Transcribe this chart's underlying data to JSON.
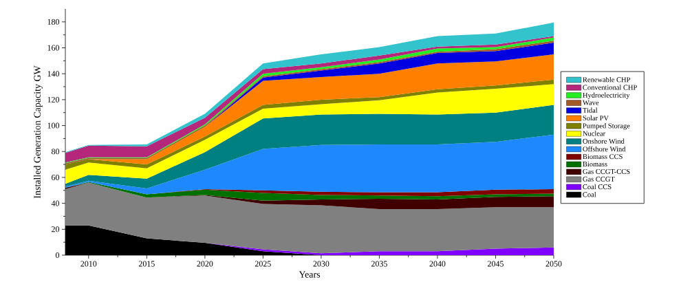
{
  "chart_data": {
    "type": "area",
    "stacked": true,
    "xlabel": "Years",
    "ylabel": "Installed Generation Capacity GW",
    "x": [
      2008,
      2010,
      2015,
      2020,
      2025,
      2030,
      2035,
      2040,
      2045,
      2050
    ],
    "xlim": [
      2008,
      2050
    ],
    "ylim": [
      0,
      190
    ],
    "xticks": [
      2010,
      2015,
      2020,
      2025,
      2030,
      2035,
      2040,
      2045,
      2050
    ],
    "yticks": [
      0,
      20,
      40,
      60,
      80,
      100,
      120,
      140,
      160,
      180
    ],
    "legend": "right",
    "series": [
      {
        "name": "Coal",
        "color": "#000000",
        "values": [
          23,
          23,
          13,
          9.5,
          3,
          0,
          null,
          null,
          null,
          null
        ]
      },
      {
        "name": "Coal CCS",
        "color": "#8000ff",
        "values": [
          null,
          null,
          null,
          0,
          1.5,
          1.5,
          3,
          3,
          5,
          6
        ]
      },
      {
        "name": "Gas CCGT",
        "color": "#808080",
        "values": [
          28,
          33,
          31.5,
          36.5,
          35,
          37,
          32.5,
          32.5,
          32,
          31
        ]
      },
      {
        "name": "Gas CCGT-CCS",
        "color": "#400000",
        "values": [
          1,
          0,
          0,
          0.5,
          2.5,
          4.5,
          8,
          7.5,
          8,
          8.5
        ]
      },
      {
        "name": "Biomass",
        "color": "#007000",
        "values": [
          0,
          0.5,
          2.5,
          4,
          6,
          3.5,
          2.5,
          2.5,
          2,
          2
        ]
      },
      {
        "name": "Biomass CCS",
        "color": "#800000",
        "values": [
          0,
          0,
          0,
          0.5,
          2,
          2.5,
          2.5,
          3,
          3.5,
          3.5
        ]
      },
      {
        "name": "Offshore Wind",
        "color": "#1e88ff",
        "values": [
          1,
          1,
          4.5,
          15,
          32,
          36,
          37,
          37,
          37,
          42
        ]
      },
      {
        "name": "Onshore Wind",
        "color": "#008080",
        "values": [
          2,
          4.5,
          7.5,
          13.5,
          23.5,
          23.5,
          23.5,
          23,
          22.5,
          23
        ]
      },
      {
        "name": "Nuclear",
        "color": "#ffff00",
        "values": [
          11,
          9.5,
          8,
          9.5,
          7.5,
          8,
          10.5,
          17,
          18.5,
          16
        ]
      },
      {
        "name": "Pumped Storage",
        "color": "#808000",
        "values": [
          4,
          2.5,
          3,
          2.5,
          3,
          3.5,
          2.5,
          2.5,
          2.5,
          3.5
        ]
      },
      {
        "name": "Solar PV",
        "color": "#ff7f00",
        "values": [
          0,
          0,
          4,
          7.5,
          18.5,
          17.5,
          18,
          20,
          18.5,
          19.5
        ]
      },
      {
        "name": "Tidal",
        "color": "#0000e0",
        "values": [
          0,
          0,
          0,
          0,
          2.5,
          5,
          8,
          8,
          8,
          9
        ]
      },
      {
        "name": "Wave",
        "color": "#a35a2a",
        "values": [
          1,
          1,
          1,
          1,
          1,
          1,
          1,
          1,
          1.5,
          1.5
        ]
      },
      {
        "name": "Hydroelectricity",
        "color": "#22ee22",
        "values": [
          0.5,
          0.5,
          0.5,
          1,
          2,
          1.5,
          2,
          2.5,
          1.5,
          2.5
        ]
      },
      {
        "name": "Conventional CHP",
        "color": "#b5277a",
        "values": [
          7.5,
          9,
          8.5,
          5,
          3.5,
          3,
          3,
          1.5,
          2,
          1
        ]
      },
      {
        "name": "Renewable CHP",
        "color": "#33c3cc",
        "values": [
          0.5,
          0.5,
          1.5,
          3,
          4.5,
          7,
          6.5,
          8,
          8.5,
          10.5
        ]
      }
    ]
  }
}
